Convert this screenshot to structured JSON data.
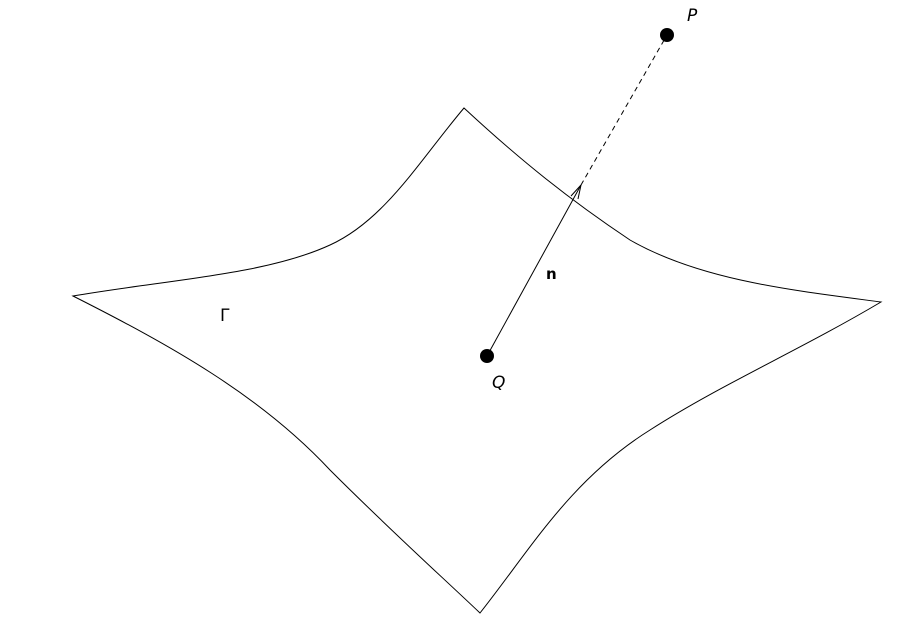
{
  "diagram": {
    "labels": {
      "point_p": "P",
      "point_q": "Q",
      "normal_vector": "n",
      "surface": "Γ"
    },
    "colors": {
      "stroke": "#000000",
      "point_fill": "#000000",
      "background": "#ffffff"
    }
  }
}
